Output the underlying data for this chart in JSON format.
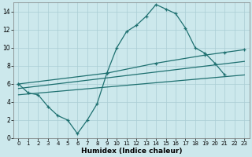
{
  "xlabel": "Humidex (Indice chaleur)",
  "bg_color": "#cce8ec",
  "grid_color": "#aacdd4",
  "line_color": "#1e7070",
  "xlim": [
    -0.5,
    23.5
  ],
  "ylim": [
    0,
    15
  ],
  "xticks": [
    0,
    1,
    2,
    3,
    4,
    5,
    6,
    7,
    8,
    9,
    10,
    11,
    12,
    13,
    14,
    15,
    16,
    17,
    18,
    19,
    20,
    21,
    22,
    23
  ],
  "yticks": [
    0,
    2,
    4,
    6,
    8,
    10,
    12,
    14
  ],
  "series": [
    {
      "x": [
        0,
        1,
        2,
        3,
        4,
        5,
        6,
        7,
        8,
        9,
        10,
        11,
        12,
        13,
        14,
        15,
        16,
        17,
        18,
        19,
        20,
        21
      ],
      "y": [
        6.0,
        5.0,
        4.8,
        3.5,
        2.5,
        2.0,
        0.5,
        2.0,
        3.8,
        7.2,
        10.0,
        11.8,
        12.5,
        13.5,
        14.8,
        14.3,
        13.8,
        12.2,
        10.0,
        9.4,
        8.3,
        7.0
      ]
    },
    {
      "x": [
        0,
        9,
        14,
        19,
        21,
        23
      ],
      "y": [
        6.0,
        7.2,
        8.3,
        9.2,
        9.5,
        9.8
      ]
    },
    {
      "x": [
        0,
        23
      ],
      "y": [
        5.5,
        8.5
      ]
    },
    {
      "x": [
        0,
        23
      ],
      "y": [
        4.8,
        7.0
      ]
    }
  ]
}
